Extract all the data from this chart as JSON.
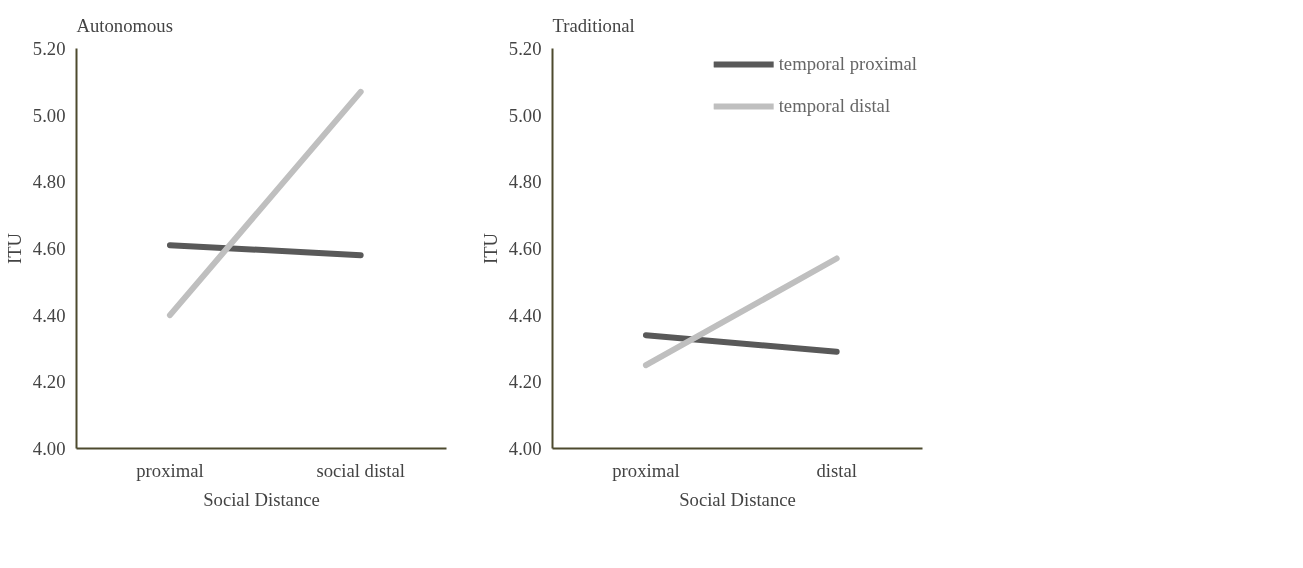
{
  "chart_data": [
    {
      "type": "line",
      "title": "Autonomous",
      "xlabel": "Social Distance",
      "ylabel": "ITU",
      "categories": [
        "proximal",
        "social distal"
      ],
      "series": [
        {
          "color": "#595959",
          "values": [
            4.61,
            4.58
          ]
        },
        {
          "color": "#bfbfbf",
          "values": [
            4.4,
            5.07
          ]
        }
      ],
      "ylim": [
        4.0,
        5.2
      ],
      "yticks": [
        {
          "value": 4.0,
          "label": "4.00"
        },
        {
          "value": 4.2,
          "label": "4.20"
        },
        {
          "value": 4.4,
          "label": "4.40"
        },
        {
          "value": 4.6,
          "label": "4.60"
        },
        {
          "value": 4.8,
          "label": "4.80"
        },
        {
          "value": 5.0,
          "label": "5.00"
        },
        {
          "value": 5.2,
          "label": "5.20"
        }
      ],
      "grid": false,
      "legend": false,
      "marker": "none",
      "line_style": "solid"
    },
    {
      "type": "line",
      "title": "Traditional",
      "xlabel": "Social Distance",
      "ylabel": "ITU",
      "categories": [
        "proximal",
        "distal"
      ],
      "series": [
        {
          "name": "temporal proximal",
          "color": "#595959",
          "values": [
            4.34,
            4.29
          ]
        },
        {
          "name": "temporal distal",
          "color": "#bfbfbf",
          "values": [
            4.25,
            4.57
          ]
        }
      ],
      "ylim": [
        4.0,
        5.2
      ],
      "yticks": [
        {
          "value": 4.0,
          "label": "4.00"
        },
        {
          "value": 4.2,
          "label": "4.20"
        },
        {
          "value": 4.4,
          "label": "4.40"
        },
        {
          "value": 4.6,
          "label": "4.60"
        },
        {
          "value": 4.8,
          "label": "4.80"
        },
        {
          "value": 5.0,
          "label": "5.00"
        },
        {
          "value": 5.2,
          "label": "5.20"
        }
      ],
      "grid": false,
      "legend": "top right",
      "marker": "none",
      "line_style": "solid"
    }
  ]
}
